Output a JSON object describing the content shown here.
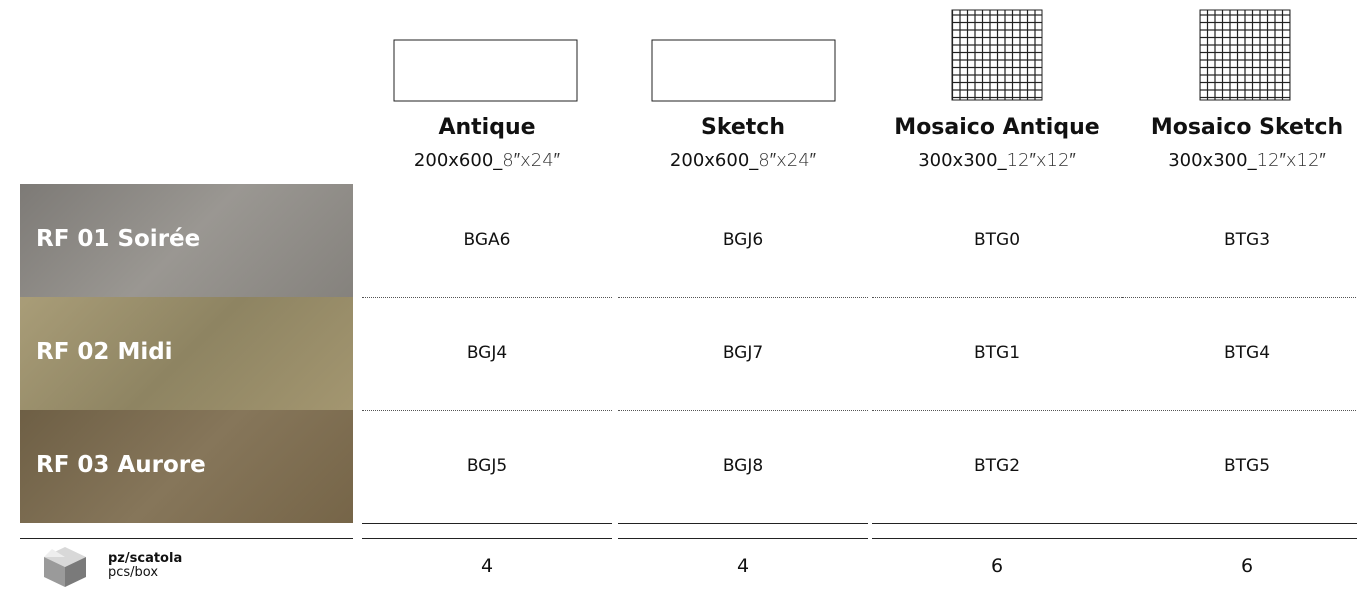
{
  "columns": [
    {
      "name": "Antique",
      "size": "200x600_",
      "size_imperial": "8″x24″"
    },
    {
      "name": "Sketch",
      "size": "200x600_",
      "size_imperial": "8″x24″"
    },
    {
      "name": "Mosaico Antique",
      "size": "300x300_",
      "size_imperial": "12″x12″"
    },
    {
      "name": "Mosaico Sketch",
      "size": "300x300_",
      "size_imperial": "12″x12″"
    }
  ],
  "rows": [
    {
      "name": "RF 01 Soirée",
      "codes": [
        "BGA6",
        "BGJ6",
        "BTG0",
        "BTG3"
      ]
    },
    {
      "name": "RF 02 Midi",
      "codes": [
        "BGJ4",
        "BGJ7",
        "BTG1",
        "BTG4"
      ]
    },
    {
      "name": "RF 03 Aurore",
      "codes": [
        "BGJ5",
        "BGJ8",
        "BTG2",
        "BTG5"
      ]
    }
  ],
  "footer": {
    "label": "pz/scatola",
    "sublabel": "pcs/box",
    "values": [
      "4",
      "4",
      "6",
      "6"
    ]
  }
}
